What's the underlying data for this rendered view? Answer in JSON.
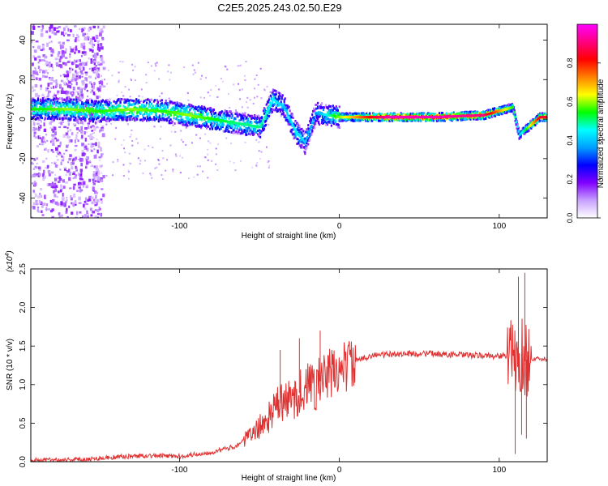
{
  "title": "C2E5.2025.243.02.50.E29",
  "chart_data": [
    {
      "type": "heatmap",
      "xlabel": "Height of straight line (km)",
      "ylabel": "Frequency (Hz)",
      "xlim": [
        -193,
        130
      ],
      "ylim": [
        -50,
        48
      ],
      "xticks": [
        -100,
        0,
        100
      ],
      "yticks": [
        -40,
        -20,
        0,
        20,
        40
      ],
      "colorbar": {
        "label": "Normalized spectral amplitude",
        "range": [
          0,
          1
        ],
        "ticks": [
          "0.0",
          "0.2",
          "0.4",
          "0.6",
          "0.8"
        ],
        "colors": [
          "#ffffff",
          "#c8a0ff",
          "#8000ff",
          "#0000ff",
          "#00a0ff",
          "#00ffff",
          "#00ff00",
          "#ffff00",
          "#ff8000",
          "#ff0000",
          "#ff0080",
          "#ff00ff"
        ]
      },
      "ridge": [
        {
          "x": -185,
          "f": 5,
          "a": 0.55
        },
        {
          "x": -170,
          "f": 5,
          "a": 0.6
        },
        {
          "x": -150,
          "f": 4,
          "a": 0.55
        },
        {
          "x": -130,
          "f": 5,
          "a": 0.6
        },
        {
          "x": -110,
          "f": 4,
          "a": 0.55
        },
        {
          "x": -95,
          "f": 2,
          "a": 0.6
        },
        {
          "x": -80,
          "f": 0,
          "a": 0.55
        },
        {
          "x": -65,
          "f": -2,
          "a": 0.5
        },
        {
          "x": -50,
          "f": -4,
          "a": 0.5
        },
        {
          "x": -42,
          "f": 10,
          "a": 0.45
        },
        {
          "x": -35,
          "f": 6,
          "a": 0.4
        },
        {
          "x": -28,
          "f": -6,
          "a": 0.45
        },
        {
          "x": -22,
          "f": -12,
          "a": 0.4
        },
        {
          "x": -15,
          "f": 3,
          "a": 0.35
        },
        {
          "x": 0,
          "f": 1,
          "a": 0.6
        },
        {
          "x": 30,
          "f": 1,
          "a": 0.95
        },
        {
          "x": 60,
          "f": 1,
          "a": 0.95
        },
        {
          "x": 90,
          "f": 2,
          "a": 0.9
        },
        {
          "x": 108,
          "f": 6,
          "a": 0.55
        },
        {
          "x": 112,
          "f": -8,
          "a": 0.4
        },
        {
          "x": 125,
          "f": 1,
          "a": 0.85
        }
      ]
    },
    {
      "type": "line",
      "xlabel": "Height of straight line (km)",
      "ylabel": "SNR (10 * v/v)",
      "scale_label": "(x10",
      "scale_exp": "4",
      "scale_close": ")",
      "xlim": [
        -193,
        130
      ],
      "ylim": [
        0,
        2.5
      ],
      "xticks": [
        -100,
        0,
        100
      ],
      "yticks": [
        "0.0",
        "0.5",
        "1.0",
        "1.5",
        "2.0",
        "2.5"
      ],
      "series": [
        {
          "name": "SNR",
          "color": "#e03030",
          "x": [
            -193,
            -160,
            -140,
            -120,
            -100,
            -80,
            -65,
            -55,
            -45,
            -38,
            -30,
            -22,
            -15,
            -8,
            0,
            10,
            20,
            40,
            60,
            80,
            100,
            105,
            108,
            110,
            112,
            114,
            116,
            118,
            120,
            130
          ],
          "y": [
            0.02,
            0.03,
            0.06,
            0.08,
            0.07,
            0.12,
            0.2,
            0.35,
            0.55,
            0.75,
            0.8,
            0.95,
            1.0,
            1.1,
            1.2,
            1.3,
            1.38,
            1.4,
            1.4,
            1.38,
            1.37,
            1.38,
            1.35,
            1.3,
            1.25,
            1.4,
            1.3,
            1.35,
            1.33,
            1.33
          ]
        }
      ],
      "spikes": [
        {
          "x": -37,
          "y": 1.45
        },
        {
          "x": -25,
          "y": 1.6
        },
        {
          "x": -12,
          "y": 1.7
        },
        {
          "x": 110,
          "y": 0.1
        },
        {
          "x": 112,
          "y": 2.4
        },
        {
          "x": 114,
          "y": 0.35
        },
        {
          "x": 116,
          "y": 2.45
        },
        {
          "x": 117,
          "y": 0.3
        }
      ]
    }
  ]
}
